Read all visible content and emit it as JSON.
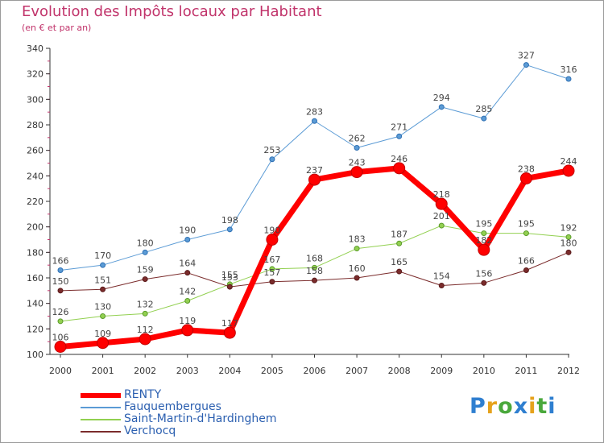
{
  "title": "Evolution des Impôts locaux par Habitant",
  "subtitle": "(en € et par an)",
  "logo": {
    "letters": [
      "P",
      "r",
      "o",
      "x",
      "i",
      "t",
      "i"
    ],
    "colors": [
      "#2f7fd0",
      "#e6a21c",
      "#4aa83c",
      "#2f7fd0",
      "#e6a21c",
      "#4aa83c",
      "#2f7fd0"
    ]
  },
  "colors": {
    "RENTY": "#ff0000",
    "Fauquembergues": "#5b9bd5",
    "Saint-Martin-d'Hardinghem": "#92d050",
    "Verchocq": "#7b2c2c"
  },
  "chart_data": {
    "type": "line",
    "title": "Evolution des Impôts locaux par Habitant",
    "subtitle": "(en € et par an)",
    "xlabel": "",
    "ylabel": "",
    "ylim": [
      100,
      340
    ],
    "ytick_step": 20,
    "grid": false,
    "legend_position": "bottom-left",
    "x": [
      "2000",
      "2001",
      "2002",
      "2003",
      "2004",
      "2005",
      "2006",
      "2007",
      "2008",
      "2009",
      "2010",
      "2011",
      "2012"
    ],
    "series": [
      {
        "name": "RENTY",
        "values": [
          106,
          109,
          112,
          119,
          117,
          190,
          237,
          243,
          246,
          218,
          182,
          238,
          244
        ]
      },
      {
        "name": "Fauquembergues",
        "values": [
          166,
          170,
          180,
          190,
          198,
          253,
          283,
          262,
          271,
          294,
          285,
          327,
          316
        ]
      },
      {
        "name": "Saint-Martin-d'Hardinghem",
        "values": [
          126,
          130,
          132,
          142,
          155,
          167,
          168,
          183,
          187,
          201,
          195,
          195,
          192
        ]
      },
      {
        "name": "Verchocq",
        "values": [
          150,
          151,
          159,
          164,
          153,
          157,
          158,
          160,
          165,
          154,
          156,
          166,
          180
        ]
      }
    ]
  }
}
